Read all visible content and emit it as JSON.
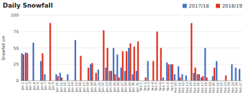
{
  "chart_data": {
    "type": "bar",
    "title": "Daily Snowfall",
    "ylabel": "Snowfall cm",
    "categories": [
      "Jan 1",
      "Jan 2",
      "Jan 3",
      "Jan 4",
      "Jan 5",
      "Jan 6",
      "Jan 7",
      "Jan 8",
      "Jan 9",
      "Jan 10",
      "Jan 11",
      "Jan 12",
      "Jan 13",
      "Jan 14",
      "Jan 15",
      "Jan 16",
      "Jan 17",
      "Jan 18",
      "Jan 19",
      "Jan 20",
      "Jan 21",
      "Jan 22",
      "Jan 23",
      "Jan 24",
      "Jan 25",
      "Jan 26",
      "Jan 27",
      "Jan 28",
      "Jan 29",
      "Jan 30",
      "Jan 31",
      "Feb 1",
      "Feb 2",
      "Feb 3",
      "Feb 4",
      "Feb 5",
      "Feb 6",
      "Feb 7",
      "Feb 8",
      "Feb 9",
      "Feb 10",
      "Feb 11",
      "Feb 12",
      "Feb 13",
      "Feb 14",
      "Feb 15",
      "Feb 16",
      "Feb 17",
      "Feb 18",
      "Feb 19",
      "Feb 20",
      "Feb 21",
      "Feb 22",
      "Feb 23",
      "Feb 24",
      "Feb 25",
      "Feb 26",
      "Feb 27"
    ],
    "series": [
      {
        "name": "2017/18",
        "color": "#4472C4",
        "values": [
          42,
          43,
          0,
          58,
          0,
          30,
          10,
          0,
          0,
          10,
          12,
          0,
          10,
          0,
          62,
          0,
          0,
          0,
          25,
          0,
          17,
          0,
          20,
          15,
          50,
          40,
          20,
          15,
          50,
          10,
          15,
          0,
          0,
          30,
          0,
          0,
          0,
          5,
          28,
          25,
          10,
          22,
          10,
          8,
          0,
          12,
          10,
          5,
          50,
          0,
          7,
          30,
          0,
          0,
          0,
          25,
          20,
          18
        ]
      },
      {
        "name": "2018/19",
        "color": "#E03020",
        "values": [
          40,
          42,
          0,
          0,
          0,
          42,
          0,
          88,
          0,
          7,
          5,
          0,
          0,
          0,
          0,
          38,
          0,
          20,
          27,
          12,
          0,
          77,
          50,
          15,
          10,
          5,
          45,
          45,
          57,
          52,
          60,
          0,
          5,
          0,
          30,
          75,
          50,
          0,
          25,
          25,
          0,
          5,
          0,
          0,
          88,
          20,
          10,
          7,
          5,
          0,
          20,
          0,
          0,
          8,
          0,
          0,
          0,
          0
        ]
      }
    ],
    "ylim": [
      0,
      100
    ],
    "yticks": [
      0,
      25,
      50,
      75,
      100
    ],
    "grid": true,
    "legend": "top"
  }
}
